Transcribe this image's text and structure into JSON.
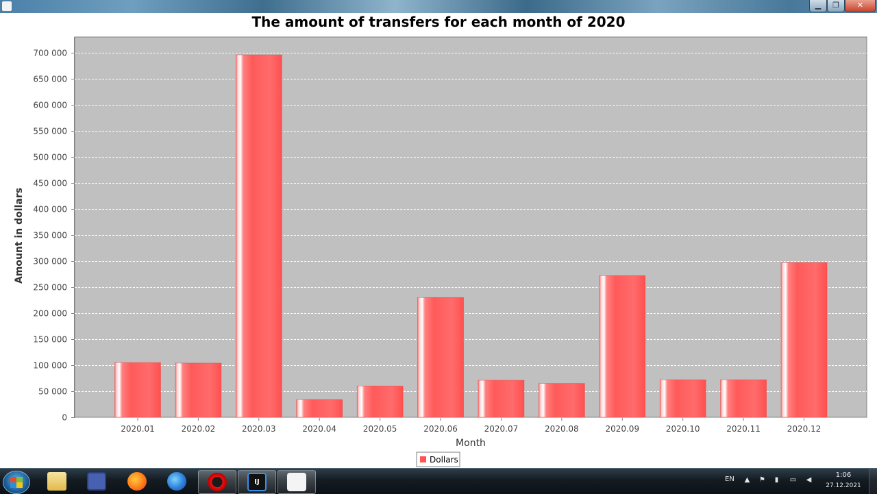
{
  "window": {
    "title": "",
    "minimize_label": "▁",
    "maximize_label": "❐",
    "close_label": "✕"
  },
  "chart_data": {
    "type": "bar",
    "title": "The amount of transfers for each month of 2020",
    "xlabel": "Month",
    "ylabel": "Amount in dollars",
    "categories": [
      "2020.01",
      "2020.02",
      "2020.03",
      "2020.04",
      "2020.05",
      "2020.06",
      "2020.07",
      "2020.08",
      "2020.09",
      "2020.10",
      "2020.11",
      "2020.12"
    ],
    "series": [
      {
        "name": "Dollars",
        "values": [
          105000,
          104000,
          696000,
          34000,
          60000,
          230000,
          71000,
          65000,
          272000,
          72000,
          72000,
          297000
        ]
      }
    ],
    "ylim": [
      0,
      700000
    ],
    "yticks": [
      0,
      50000,
      100000,
      150000,
      200000,
      250000,
      300000,
      350000,
      400000,
      450000,
      500000,
      550000,
      600000,
      650000,
      700000
    ],
    "ytick_labels": [
      "0",
      "50 000",
      "100 000",
      "150 000",
      "200 000",
      "250 000",
      "300 000",
      "350 000",
      "400 000",
      "450 000",
      "500 000",
      "550 000",
      "600 000",
      "650 000",
      "700 000"
    ],
    "grid": true,
    "legend": "bottom",
    "colors": {
      "bar": "#ff5555",
      "plot_bg": "#c0c0c0",
      "grid": "#ffffff"
    }
  },
  "taskbar": {
    "items": [
      {
        "name": "windows-explorer",
        "icon": "folder-icon"
      },
      {
        "name": "save",
        "icon": "floppy-disk-icon"
      },
      {
        "name": "firefox",
        "icon": "firefox-icon"
      },
      {
        "name": "firefox-developer",
        "icon": "firefox-developer-icon"
      },
      {
        "name": "opera",
        "icon": "opera-icon"
      },
      {
        "name": "intellij-idea",
        "icon": "intellij-icon",
        "label": "IJ"
      },
      {
        "name": "java",
        "icon": "java-icon"
      }
    ],
    "language": "EN",
    "tray_expand": "▲",
    "time": "1:06",
    "date": "27.12.2021"
  }
}
